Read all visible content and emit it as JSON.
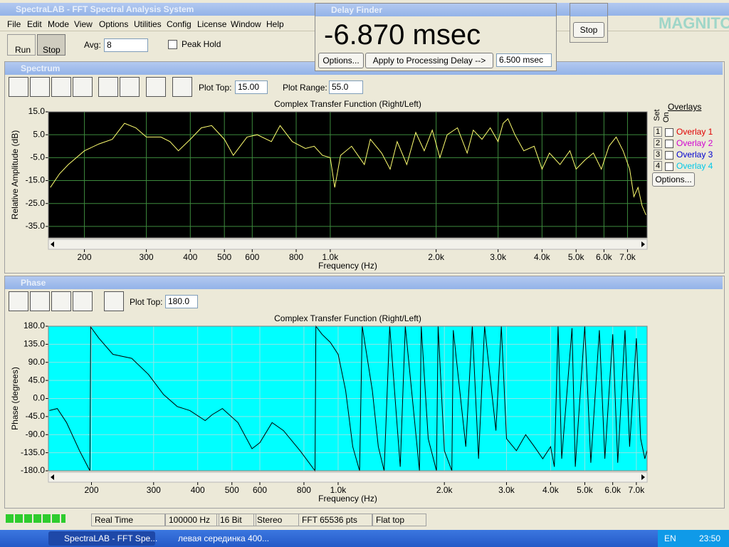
{
  "title_bar": {
    "title": "SpectraLAB - FFT Spectral Analysis System"
  },
  "menu": [
    "File",
    "Edit",
    "Mode",
    "View",
    "Options",
    "Utilities",
    "Config",
    "License",
    "Window",
    "Help"
  ],
  "toolbar": {
    "run": "Run",
    "stop": "Stop",
    "avg_label": "Avg:",
    "avg_value": "8",
    "peak_hold": "Peak Hold"
  },
  "delay_finder": {
    "title": "Delay Finder",
    "reading": "-6.870 msec",
    "options": "Options...",
    "apply": "Apply to Processing Delay -->",
    "delay": "6.500 msec"
  },
  "stop_window": {
    "stop": "Stop"
  },
  "watermark": "MAGNITOLA",
  "spectrum_window": {
    "title": "Spectrum",
    "plot_top_label": "Plot Top:",
    "plot_top": "15.00",
    "plot_range_label": "Plot Range:",
    "plot_range": "55.0",
    "overlays": {
      "title": "Overlays",
      "set": "Set",
      "on": "On",
      "items": [
        {
          "set": "1",
          "name": "Overlay 1"
        },
        {
          "set": "2",
          "name": "Overlay 2"
        },
        {
          "set": "3",
          "name": "Overlay 3"
        },
        {
          "set": "4",
          "name": "Overlay 4"
        }
      ],
      "options": "Options..."
    }
  },
  "phase_window": {
    "title": "Phase",
    "plot_top_label": "Plot Top:",
    "plot_top": "180.0"
  },
  "chart_data": [
    {
      "type": "line",
      "title": "Complex Transfer Function (Right/Left)",
      "x_label": "Frequency (Hz)",
      "y_label": "Relative Amplitude (dB)",
      "x_scale": "log",
      "grid": true,
      "grid_color": "#3d8a3d",
      "background": "#000000",
      "color": "#ffff70",
      "xlim": [
        158,
        7960
      ],
      "ylim": [
        -40,
        15
      ],
      "xticks": [
        200,
        300,
        400,
        500,
        600,
        800,
        {
          "value": 1000,
          "label": "1.0k"
        },
        {
          "value": 2000,
          "label": "2.0k"
        },
        {
          "value": 3000,
          "label": "3.0k"
        },
        {
          "value": 4000,
          "label": "4.0k"
        },
        {
          "value": 5000,
          "label": "5.0k"
        },
        {
          "value": 6000,
          "label": "6.0k"
        },
        {
          "value": 7000,
          "label": "7.0k"
        }
      ],
      "yticks": [
        {
          "value": 15,
          "label": "15.0"
        },
        {
          "value": 5,
          "label": "5.0"
        },
        {
          "value": -5,
          "label": "-5.0"
        },
        {
          "value": -15,
          "label": "-15.0"
        },
        {
          "value": -25,
          "label": "-25.0"
        },
        {
          "value": -35,
          "label": "-35.0"
        }
      ],
      "x": [
        160,
        170,
        180,
        200,
        220,
        240,
        260,
        280,
        300,
        330,
        350,
        370,
        400,
        430,
        460,
        500,
        530,
        580,
        620,
        680,
        720,
        780,
        850,
        900,
        950,
        1000,
        1030,
        1070,
        1150,
        1250,
        1300,
        1400,
        1480,
        1550,
        1650,
        1750,
        1850,
        1950,
        2050,
        2150,
        2300,
        2450,
        2550,
        2700,
        2850,
        3000,
        3100,
        3200,
        3350,
        3550,
        3800,
        4000,
        4200,
        4500,
        4800,
        5000,
        5300,
        5600,
        5900,
        6200,
        6500,
        6800,
        7100,
        7300,
        7500,
        7700,
        7900
      ],
      "values": [
        -18,
        -12,
        -8,
        -2,
        1,
        3,
        10,
        8,
        4,
        4,
        2,
        -2,
        3,
        8,
        9,
        3,
        -4,
        4,
        5,
        2,
        9,
        2,
        -1,
        0,
        -4,
        -5,
        -18,
        -4,
        0,
        -8,
        3,
        -3,
        -10,
        2,
        -8,
        6,
        -2,
        7,
        -5,
        5,
        8,
        -3,
        7,
        3,
        8,
        2,
        10,
        12,
        5,
        -2,
        0,
        -10,
        -3,
        -8,
        -2,
        -10,
        -6,
        -3,
        -10,
        0,
        4,
        -2,
        -10,
        -22,
        -18,
        -26,
        -30
      ]
    },
    {
      "type": "line",
      "title": "Complex Transfer Function (Right/Left)",
      "x_label": "Frequency (Hz)",
      "y_label": "Phase (degrees)",
      "x_scale": "log",
      "grid": true,
      "grid_color": "#8fe6e6",
      "background": "#00ffff",
      "color": "#000000",
      "xlim": [
        151,
        7510
      ],
      "ylim": [
        -180,
        180
      ],
      "xticks": [
        200,
        300,
        400,
        500,
        600,
        800,
        {
          "value": 1000,
          "label": "1.0k"
        },
        {
          "value": 2000,
          "label": "2.0k"
        },
        {
          "value": 3000,
          "label": "3.0k"
        },
        {
          "value": 4000,
          "label": "4.0k"
        },
        {
          "value": 5000,
          "label": "5.0k"
        },
        {
          "value": 6000,
          "label": "6.0k"
        },
        {
          "value": 7000,
          "label": "7.0k"
        }
      ],
      "yticks": [
        {
          "value": 180,
          "label": "180.0"
        },
        {
          "value": 135,
          "label": "135.0"
        },
        {
          "value": 90,
          "label": "90.0"
        },
        {
          "value": 45,
          "label": "45.0"
        },
        {
          "value": 0,
          "label": "0.0"
        },
        {
          "value": -45,
          "label": "-45.0"
        },
        {
          "value": -90,
          "label": "-90.0"
        },
        {
          "value": -135,
          "label": "-135.0"
        },
        {
          "value": -180,
          "label": "-180.0"
        }
      ],
      "x": [
        152,
        160,
        170,
        185,
        198,
        199,
        210,
        230,
        260,
        290,
        320,
        350,
        380,
        420,
        440,
        470,
        520,
        570,
        600,
        650,
        700,
        780,
        860,
        865,
        900,
        950,
        1000,
        1050,
        1100,
        1150,
        1170,
        1250,
        1300,
        1350,
        1400,
        1500,
        1550,
        1700,
        1720,
        1800,
        1900,
        1920,
        2000,
        2100,
        2120,
        2300,
        2400,
        2500,
        2600,
        2800,
        2900,
        3000,
        3200,
        3400,
        3600,
        3800,
        4000,
        4100,
        4200,
        4300,
        4600,
        4700,
        5000,
        5200,
        5500,
        5700,
        6000,
        6200,
        6500,
        6700,
        7000,
        7200,
        7400,
        7500
      ],
      "values": [
        -30,
        -25,
        -60,
        -130,
        -180,
        178,
        150,
        110,
        100,
        60,
        10,
        -20,
        -30,
        -55,
        -40,
        -25,
        -60,
        -125,
        -110,
        -60,
        -80,
        -130,
        -180,
        180,
        160,
        140,
        110,
        20,
        -120,
        -180,
        180,
        20,
        -120,
        -180,
        180,
        -170,
        180,
        -180,
        180,
        -100,
        -180,
        180,
        -130,
        -180,
        170,
        -120,
        180,
        -150,
        180,
        -80,
        180,
        -100,
        -130,
        -90,
        -120,
        -150,
        -120,
        -170,
        180,
        -150,
        175,
        -170,
        180,
        -160,
        170,
        -150,
        160,
        -160,
        170,
        -120,
        150,
        -100,
        -150,
        -130
      ]
    }
  ],
  "status_bar": [
    "Real Time",
    "100000 Hz",
    "16 Bit",
    "Stereo",
    "FFT 65536 pts",
    "Flat top"
  ],
  "taskbar": {
    "tasks": [
      "SpectraLAB - FFT Spe...",
      "левая серединка 400..."
    ],
    "language": "EN",
    "clock": "23:50"
  }
}
